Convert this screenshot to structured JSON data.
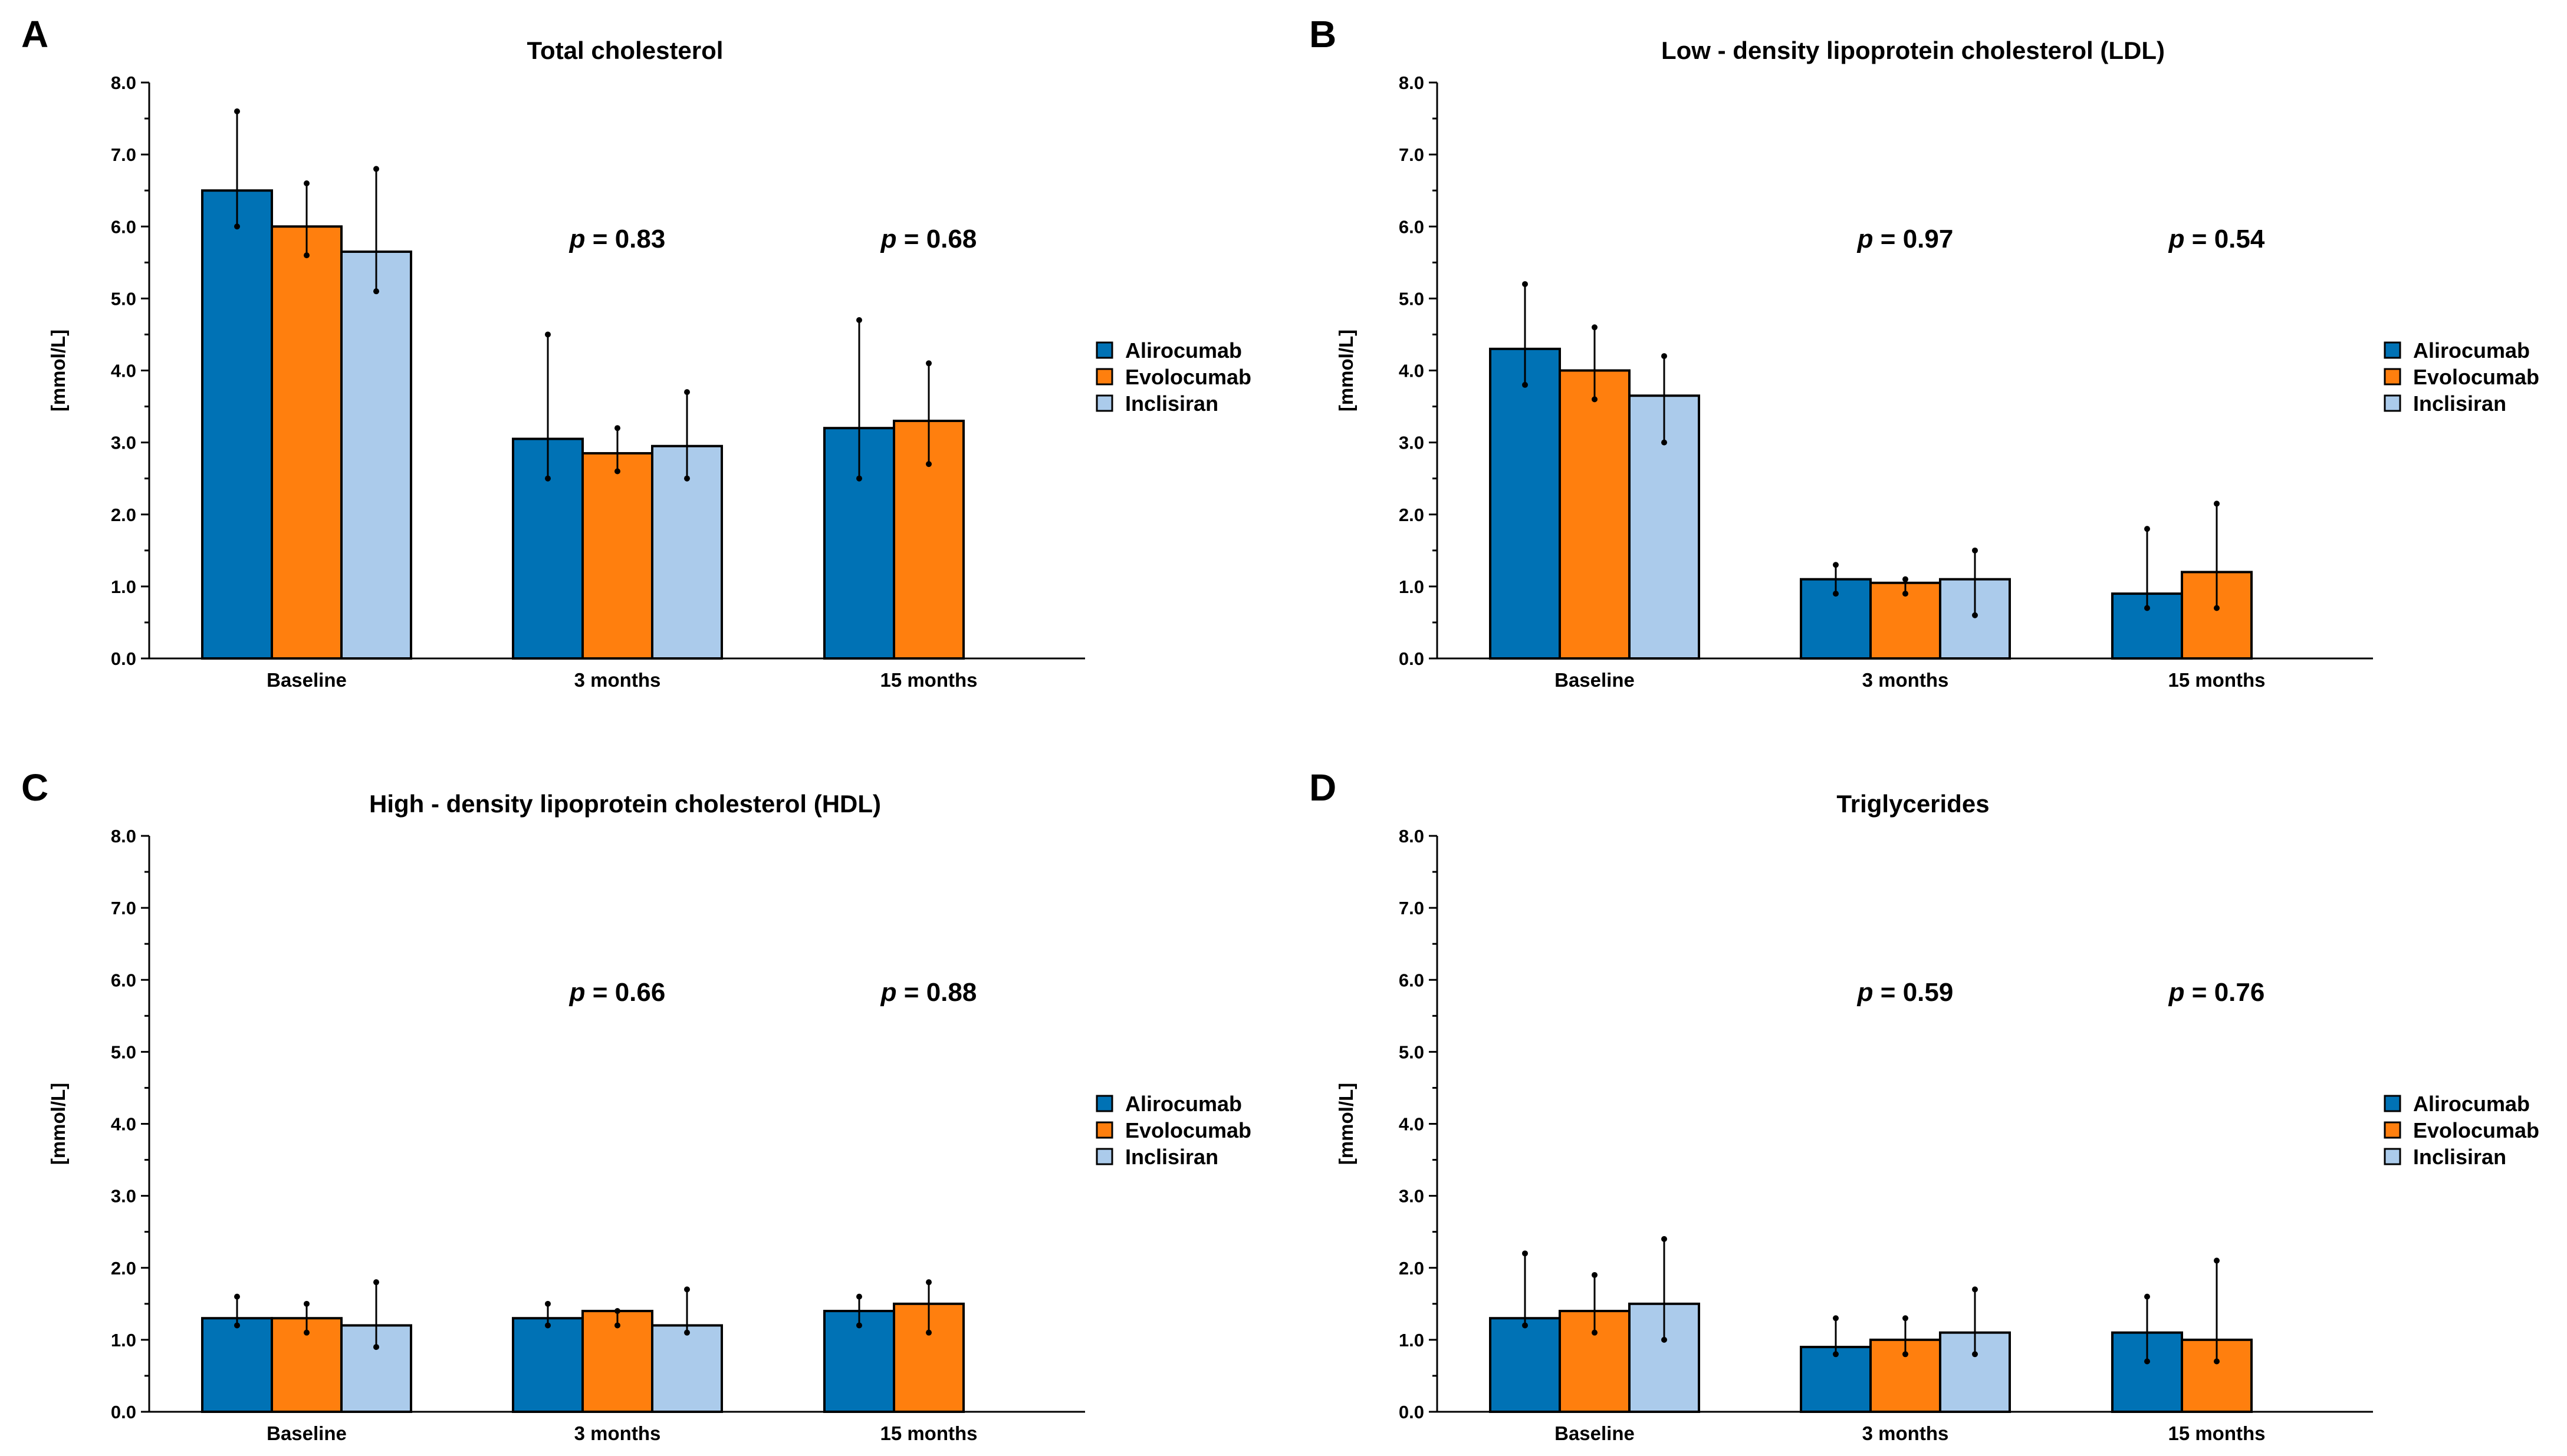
{
  "figure": {
    "series_colors": {
      "Alirocumab": "#0072b5",
      "Evolocumab": "#ff7f0e",
      "Inclisiran": "#abcbeb"
    }
  },
  "chart_data": [
    {
      "panel": "A",
      "type": "bar",
      "title": "Total cholesterol",
      "xlabel": "",
      "ylabel": "[mmol/L]",
      "ylim": [
        0,
        8
      ],
      "yticks": [
        "0.0",
        "1.0",
        "2.0",
        "3.0",
        "4.0",
        "5.0",
        "6.0",
        "7.0",
        "8.0"
      ],
      "categories": [
        "Baseline",
        "3 months",
        "15 months"
      ],
      "series": [
        {
          "name": "Alirocumab",
          "color": "#0072b5",
          "values": [
            6.5,
            3.05,
            3.2
          ],
          "err_low": [
            6.0,
            2.5,
            2.5
          ],
          "err_high": [
            7.6,
            4.5,
            4.7
          ]
        },
        {
          "name": "Evolocumab",
          "color": "#ff7f0e",
          "values": [
            6.0,
            2.85,
            3.3
          ],
          "err_low": [
            5.6,
            2.6,
            2.7
          ],
          "err_high": [
            6.6,
            3.2,
            4.1
          ]
        },
        {
          "name": "Inclisiran",
          "color": "#abcbeb",
          "values": [
            5.65,
            2.95,
            null
          ],
          "err_low": [
            5.1,
            2.5,
            null
          ],
          "err_high": [
            6.8,
            3.7,
            null
          ]
        }
      ],
      "annotations": [
        {
          "category": "3 months",
          "p": "p",
          "rest": " = 0.83"
        },
        {
          "category": "15 months",
          "p": "p",
          "rest": " = 0.68"
        }
      ],
      "legend": [
        "Alirocumab",
        "Evolocumab",
        "Inclisiran"
      ],
      "legend_position": "right"
    },
    {
      "panel": "B",
      "type": "bar",
      "title": "Low - density lipoprotein cholesterol (LDL)",
      "xlabel": "",
      "ylabel": "[mmol/L]",
      "ylim": [
        0,
        8
      ],
      "yticks": [
        "0.0",
        "1.0",
        "2.0",
        "3.0",
        "4.0",
        "5.0",
        "6.0",
        "7.0",
        "8.0"
      ],
      "categories": [
        "Baseline",
        "3 months",
        "15 months"
      ],
      "series": [
        {
          "name": "Alirocumab",
          "color": "#0072b5",
          "values": [
            4.3,
            1.1,
            0.9
          ],
          "err_low": [
            3.8,
            0.9,
            0.7
          ],
          "err_high": [
            5.2,
            1.3,
            1.8
          ]
        },
        {
          "name": "Evolocumab",
          "color": "#ff7f0e",
          "values": [
            4.0,
            1.05,
            1.2
          ],
          "err_low": [
            3.6,
            0.9,
            0.7
          ],
          "err_high": [
            4.6,
            1.1,
            2.15
          ]
        },
        {
          "name": "Inclisiran",
          "color": "#abcbeb",
          "values": [
            3.65,
            1.1,
            null
          ],
          "err_low": [
            3.0,
            0.6,
            null
          ],
          "err_high": [
            4.2,
            1.5,
            null
          ]
        }
      ],
      "annotations": [
        {
          "category": "3 months",
          "p": "p",
          "rest": " = 0.97"
        },
        {
          "category": "15 months",
          "p": "p",
          "rest": " = 0.54"
        }
      ],
      "legend": [
        "Alirocumab",
        "Evolocumab",
        "Inclisiran"
      ],
      "legend_position": "right"
    },
    {
      "panel": "C",
      "type": "bar",
      "title": "High - density lipoprotein cholesterol (HDL)",
      "xlabel": "",
      "ylabel": "[mmol/L]",
      "ylim": [
        0,
        8
      ],
      "yticks": [
        "0.0",
        "1.0",
        "2.0",
        "3.0",
        "4.0",
        "5.0",
        "6.0",
        "7.0",
        "8.0"
      ],
      "categories": [
        "Baseline",
        "3 months",
        "15 months"
      ],
      "series": [
        {
          "name": "Alirocumab",
          "color": "#0072b5",
          "values": [
            1.3,
            1.3,
            1.4
          ],
          "err_low": [
            1.2,
            1.2,
            1.2
          ],
          "err_high": [
            1.6,
            1.5,
            1.6
          ]
        },
        {
          "name": "Evolocumab",
          "color": "#ff7f0e",
          "values": [
            1.3,
            1.4,
            1.5
          ],
          "err_low": [
            1.1,
            1.2,
            1.1
          ],
          "err_high": [
            1.5,
            1.4,
            1.8
          ]
        },
        {
          "name": "Inclisiran",
          "color": "#abcbeb",
          "values": [
            1.2,
            1.2,
            null
          ],
          "err_low": [
            0.9,
            1.1,
            null
          ],
          "err_high": [
            1.8,
            1.7,
            null
          ]
        }
      ],
      "annotations": [
        {
          "category": "3 months",
          "p": "p",
          "rest": " = 0.66"
        },
        {
          "category": "15 months",
          "p": "p",
          "rest": " = 0.88"
        }
      ],
      "legend": [
        "Alirocumab",
        "Evolocumab",
        "Inclisiran"
      ],
      "legend_position": "right"
    },
    {
      "panel": "D",
      "type": "bar",
      "title": "Triglycerides",
      "xlabel": "",
      "ylabel": "[mmol/L]",
      "ylim": [
        0,
        8
      ],
      "yticks": [
        "0.0",
        "1.0",
        "2.0",
        "3.0",
        "4.0",
        "5.0",
        "6.0",
        "7.0",
        "8.0"
      ],
      "categories": [
        "Baseline",
        "3 months",
        "15 months"
      ],
      "series": [
        {
          "name": "Alirocumab",
          "color": "#0072b5",
          "values": [
            1.3,
            0.9,
            1.1
          ],
          "err_low": [
            1.2,
            0.8,
            0.7
          ],
          "err_high": [
            2.2,
            1.3,
            1.6
          ]
        },
        {
          "name": "Evolocumab",
          "color": "#ff7f0e",
          "values": [
            1.4,
            1.0,
            1.0
          ],
          "err_low": [
            1.1,
            0.8,
            0.7
          ],
          "err_high": [
            1.9,
            1.3,
            2.1
          ]
        },
        {
          "name": "Inclisiran",
          "color": "#abcbeb",
          "values": [
            1.5,
            1.1,
            null
          ],
          "err_low": [
            1.0,
            0.8,
            null
          ],
          "err_high": [
            2.4,
            1.7,
            null
          ]
        }
      ],
      "annotations": [
        {
          "category": "3 months",
          "p": "p",
          "rest": " = 0.59"
        },
        {
          "category": "15 months",
          "p": "p",
          "rest": " = 0.76"
        }
      ],
      "legend": [
        "Alirocumab",
        "Evolocumab",
        "Inclisiran"
      ],
      "legend_position": "right"
    }
  ]
}
